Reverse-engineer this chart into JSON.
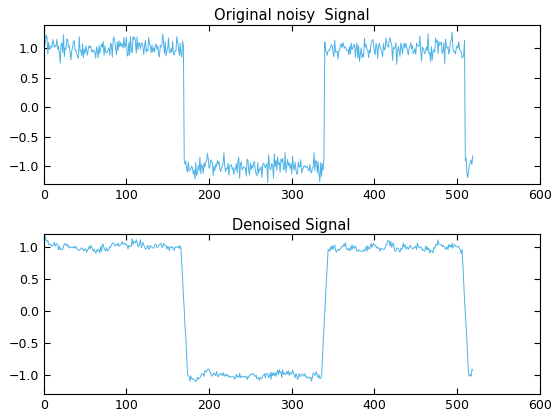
{
  "title1": "Original noisy  Signal",
  "title2": "Denoised Signal",
  "xlim": [
    0,
    600
  ],
  "ylim1": [
    -1.3,
    1.4
  ],
  "ylim2": [
    -1.3,
    1.2
  ],
  "yticks1": [
    -1,
    -0.5,
    0,
    0.5,
    1
  ],
  "yticks2": [
    -1,
    -0.5,
    0,
    0.5,
    1
  ],
  "xticks": [
    0,
    100,
    200,
    300,
    400,
    500,
    600
  ],
  "line_color": "#4db3e6",
  "noise_std": 0.1,
  "n_total": 600,
  "transition1": 170,
  "transition2": 340,
  "transition3": 510,
  "data_end": 520,
  "title_fontsize": 10.5,
  "tick_fontsize": 9,
  "figsize": [
    5.6,
    4.2
  ],
  "dpi": 100
}
